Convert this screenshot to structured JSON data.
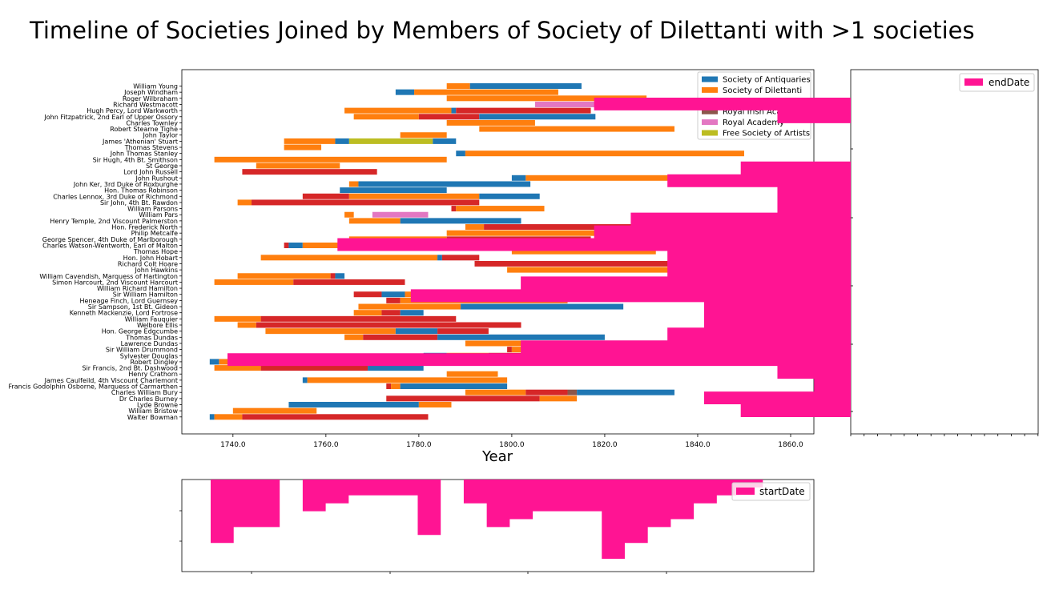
{
  "chart_data": [
    {
      "type": "bar",
      "orientation": "horizontal-timeline",
      "title": "Timeline of Societies Joined by Members of Society of Dilettanti with >1 societies",
      "xlabel": "Year",
      "ylabel": "",
      "xlim": [
        1729,
        1865
      ],
      "xticks": [
        1740,
        1760,
        1780,
        1800,
        1820,
        1840,
        1860
      ],
      "xtick_labels": [
        "1740.0",
        "1760.0",
        "1780.0",
        "1800.0",
        "1820.0",
        "1840.0",
        "1860.0"
      ],
      "legend_position": "top-right",
      "societies": [
        {
          "name": "Society of Antiquaries",
          "color": "#1f77b4"
        },
        {
          "name": "Society of Dilettanti",
          "color": "#ff7f0e"
        },
        {
          "name": "Royal Society",
          "color": "#d62728"
        },
        {
          "name": "Royal Irish Academy",
          "color": "#8c564b"
        },
        {
          "name": "Royal Academy",
          "color": "#e377c2"
        },
        {
          "name": "Free Society of Artists",
          "color": "#bcbd22"
        }
      ],
      "members": [
        {
          "name": "William Young",
          "spans": [
            [
              1,
              1786,
              1791
            ],
            [
              0,
              1791,
              1815
            ]
          ]
        },
        {
          "name": "Joseph Windham",
          "spans": [
            [
              0,
              1775,
              1779
            ],
            [
              1,
              1779,
              1810
            ]
          ]
        },
        {
          "name": "Roger Wilbraham",
          "spans": [
            [
              1,
              1786,
              1829
            ]
          ]
        },
        {
          "name": "Richard Westmacott",
          "spans": [
            [
              4,
              1805,
              1856
            ]
          ]
        },
        {
          "name": "Hugh Percy, Lord Warkworth",
          "spans": [
            [
              1,
              1764,
              1787
            ],
            [
              0,
              1787,
              1788
            ],
            [
              2,
              1788,
              1817
            ]
          ]
        },
        {
          "name": "John Fitzpatrick, 2nd Earl of Upper Ossory",
          "spans": [
            [
              1,
              1766,
              1780
            ],
            [
              2,
              1780,
              1793
            ],
            [
              0,
              1793,
              1818
            ]
          ]
        },
        {
          "name": "Charles Townley",
          "spans": [
            [
              1,
              1786,
              1805
            ]
          ]
        },
        {
          "name": "Robert Stearne Tighe",
          "spans": [
            [
              1,
              1793,
              1835
            ]
          ]
        },
        {
          "name": "John Taylor",
          "spans": [
            [
              1,
              1776,
              1786
            ]
          ]
        },
        {
          "name": "James 'Athenian' Stuart",
          "spans": [
            [
              1,
              1751,
              1762
            ],
            [
              0,
              1762,
              1765
            ],
            [
              5,
              1765,
              1783
            ],
            [
              0,
              1783,
              1788
            ]
          ]
        },
        {
          "name": "Thomas Stevens",
          "spans": [
            [
              1,
              1751,
              1759
            ]
          ]
        },
        {
          "name": "John Thomas Stanley",
          "spans": [
            [
              0,
              1788,
              1790
            ],
            [
              1,
              1790,
              1850
            ]
          ]
        },
        {
          "name": "Sir Hugh, 4th Bt. Smithson",
          "spans": [
            [
              1,
              1736,
              1786
            ]
          ]
        },
        {
          "name": "St George",
          "spans": [
            [
              1,
              1745,
              1763
            ]
          ]
        },
        {
          "name": "Lord John Russell",
          "spans": [
            [
              2,
              1742,
              1771
            ]
          ]
        },
        {
          "name": "John Rushout",
          "spans": [
            [
              0,
              1800,
              1803
            ],
            [
              1,
              1803,
              1859
            ]
          ]
        },
        {
          "name": "John Ker, 3rd Duke of Roxburghe",
          "spans": [
            [
              1,
              1765,
              1767
            ],
            [
              0,
              1767,
              1804
            ]
          ]
        },
        {
          "name": "Hon. Thomas Robinson",
          "spans": [
            [
              0,
              1763,
              1786
            ]
          ]
        },
        {
          "name": "Charles Lennox, 3rd Duke of Richmond",
          "spans": [
            [
              2,
              1755,
              1765
            ],
            [
              1,
              1765,
              1793
            ],
            [
              0,
              1793,
              1806
            ]
          ]
        },
        {
          "name": "Sir John, 4th Bt. Rawdon",
          "spans": [
            [
              1,
              1741,
              1744
            ],
            [
              2,
              1744,
              1793
            ]
          ]
        },
        {
          "name": "William Parsons",
          "spans": [
            [
              2,
              1787,
              1788
            ],
            [
              1,
              1788,
              1807
            ]
          ]
        },
        {
          "name": "William Pars",
          "spans": [
            [
              1,
              1764,
              1766
            ],
            [
              4,
              1770,
              1782
            ]
          ]
        },
        {
          "name": "Henry Temple, 2nd Viscount Palmerston",
          "spans": [
            [
              1,
              1765,
              1776
            ],
            [
              0,
              1776,
              1802
            ]
          ]
        },
        {
          "name": "Hon. Frederick North",
          "spans": [
            [
              1,
              1790,
              1794
            ],
            [
              2,
              1794,
              1827
            ]
          ]
        },
        {
          "name": "Philip Metcalfe",
          "spans": [
            [
              1,
              1786,
              1818
            ]
          ]
        },
        {
          "name": "George Spencer, 4th Duke of Marlborough",
          "spans": [
            [
              1,
              1765,
              1786
            ],
            [
              2,
              1786,
              1817
            ]
          ]
        },
        {
          "name": "Charles Watson-Wentworth, Earl of Malton",
          "spans": [
            [
              2,
              1751,
              1752
            ],
            [
              0,
              1752,
              1755
            ],
            [
              1,
              1755,
              1782
            ]
          ]
        },
        {
          "name": "Thomas Hope",
          "spans": [
            [
              1,
              1800,
              1831
            ]
          ]
        },
        {
          "name": "Hon. John Hobart",
          "spans": [
            [
              1,
              1746,
              1784
            ],
            [
              0,
              1784,
              1785
            ],
            [
              2,
              1785,
              1793
            ]
          ]
        },
        {
          "name": "Richard Colt Hoare",
          "spans": [
            [
              2,
              1792,
              1838
            ]
          ]
        },
        {
          "name": "John Hawkins",
          "spans": [
            [
              1,
              1799,
              1841
            ]
          ]
        },
        {
          "name": "William Cavendish, Marquess of Hartington",
          "spans": [
            [
              1,
              1741,
              1761
            ],
            [
              2,
              1761,
              1762
            ],
            [
              0,
              1762,
              1764
            ]
          ]
        },
        {
          "name": "Simon Harcourt, 2nd Viscount Harcourt",
          "spans": [
            [
              1,
              1736,
              1753
            ],
            [
              2,
              1753,
              1777
            ]
          ]
        },
        {
          "name": "William Richard Hamilton",
          "spans": [
            [
              0,
              1804,
              1811
            ],
            [
              1,
              1811,
              1813
            ],
            [
              2,
              1813,
              1859
            ]
          ]
        },
        {
          "name": "Sir William Hamilton",
          "spans": [
            [
              2,
              1766,
              1772
            ],
            [
              0,
              1772,
              1777
            ],
            [
              1,
              1777,
              1803
            ]
          ]
        },
        {
          "name": "Heneage Finch, Lord Guernsey",
          "spans": [
            [
              2,
              1773,
              1776
            ],
            [
              1,
              1776,
              1812
            ]
          ]
        },
        {
          "name": "Sir Sampson, 1st Bt. Gideon",
          "spans": [
            [
              1,
              1767,
              1789
            ],
            [
              0,
              1789,
              1824
            ]
          ]
        },
        {
          "name": "Kenneth Mackenzie, Lord Fortrose",
          "spans": [
            [
              1,
              1766,
              1772
            ],
            [
              2,
              1772,
              1776
            ],
            [
              0,
              1776,
              1781
            ]
          ]
        },
        {
          "name": "William Fauquier",
          "spans": [
            [
              1,
              1736,
              1746
            ],
            [
              2,
              1746,
              1788
            ]
          ]
        },
        {
          "name": "Welbore Ellis",
          "spans": [
            [
              1,
              1741,
              1745
            ],
            [
              2,
              1745,
              1802
            ]
          ]
        },
        {
          "name": "Hon. George Edgcumbe",
          "spans": [
            [
              1,
              1747,
              1775
            ],
            [
              0,
              1775,
              1784
            ],
            [
              2,
              1784,
              1795
            ]
          ]
        },
        {
          "name": "Thomas Dundas",
          "spans": [
            [
              1,
              1764,
              1768
            ],
            [
              2,
              1768,
              1784
            ],
            [
              0,
              1784,
              1820
            ]
          ]
        },
        {
          "name": "Lawrence Dundas",
          "spans": [
            [
              1,
              1790,
              1812
            ],
            [
              0,
              1812,
              1839
            ]
          ]
        },
        {
          "name": "Sir William Drummond",
          "spans": [
            [
              2,
              1799,
              1800
            ],
            [
              1,
              1800,
              1828
            ]
          ]
        },
        {
          "name": "Sylvester Douglas",
          "spans": [
            [
              0,
              1781,
              1786
            ],
            [
              1,
              1786,
              1795
            ],
            [
              2,
              1795,
              1823
            ]
          ]
        },
        {
          "name": "Robert Dingley",
          "spans": [
            [
              0,
              1735,
              1737
            ],
            [
              1,
              1737,
              1748
            ],
            [
              2,
              1748,
              1781
            ]
          ]
        },
        {
          "name": "Sir Francis, 2nd Bt. Dashwood",
          "spans": [
            [
              1,
              1736,
              1746
            ],
            [
              2,
              1746,
              1769
            ],
            [
              0,
              1769,
              1781
            ]
          ]
        },
        {
          "name": "Henry Crathorn",
          "spans": [
            [
              1,
              1786,
              1797
            ]
          ]
        },
        {
          "name": "James Caulfeild, 4th Viscount Charlemont",
          "spans": [
            [
              0,
              1755,
              1756
            ],
            [
              1,
              1756,
              1799
            ]
          ]
        },
        {
          "name": "Francis Godolphin Osborne, Marquess of Carmarthen",
          "spans": [
            [
              2,
              1773,
              1774
            ],
            [
              1,
              1774,
              1776
            ],
            [
              0,
              1776,
              1799
            ]
          ]
        },
        {
          "name": "Charles William Bury",
          "spans": [
            [
              1,
              1790,
              1803
            ],
            [
              2,
              1803,
              1812
            ],
            [
              3,
              1812,
              1814
            ],
            [
              0,
              1814,
              1835
            ]
          ]
        },
        {
          "name": "Dr Charles Burney",
          "spans": [
            [
              2,
              1773,
              1806
            ],
            [
              1,
              1806,
              1814
            ]
          ]
        },
        {
          "name": "Lyde Browne",
          "spans": [
            [
              0,
              1752,
              1780
            ],
            [
              1,
              1780,
              1787
            ]
          ]
        },
        {
          "name": "William Bristow",
          "spans": [
            [
              1,
              1740,
              1758
            ]
          ]
        },
        {
          "name": "Walter Bowman",
          "spans": [
            [
              0,
              1735,
              1736
            ],
            [
              1,
              1736,
              1742
            ],
            [
              2,
              1742,
              1782
            ]
          ]
        }
      ]
    },
    {
      "type": "bar",
      "orientation": "horizontal-histogram",
      "series": [
        {
          "name": "endDate",
          "color": "#ff1493",
          "values": [
            0,
            7,
            2,
            0,
            0,
            0,
            3,
            5,
            2,
            2,
            6,
            7,
            14,
            5,
            5,
            9,
            12,
            4,
            4,
            5,
            9,
            17,
            2,
            1,
            4,
            3
          ]
        }
      ]
    },
    {
      "type": "bar",
      "orientation": "inverted-histogram",
      "series": [
        {
          "name": "startDate",
          "color": "#ff1493",
          "values": [
            8,
            6,
            6,
            0,
            4,
            3,
            2,
            2,
            2,
            7,
            0,
            3,
            6,
            5,
            4,
            4,
            4,
            10,
            8,
            6,
            5,
            3,
            2,
            1,
            0
          ]
        }
      ]
    }
  ]
}
